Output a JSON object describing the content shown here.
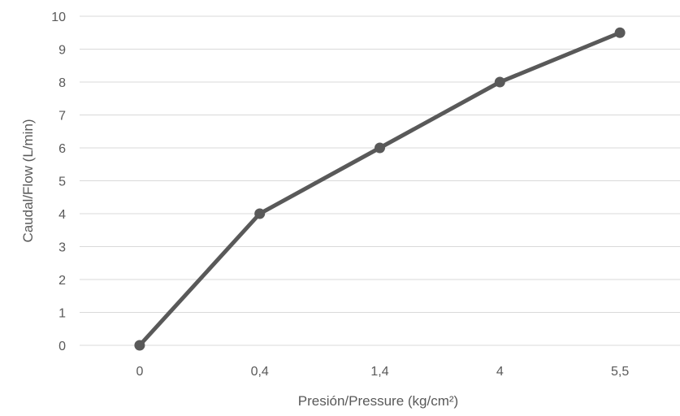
{
  "chart_data": {
    "type": "line",
    "title": "",
    "xlabel": "Presión/Pressure (kg/cm²)",
    "ylabel": "Caudal/Flow (L/min)",
    "categories": [
      "0",
      "0,4",
      "1,4",
      "4",
      "5,5"
    ],
    "series": [
      {
        "values": [
          0,
          4,
          6,
          8,
          9.5
        ]
      }
    ],
    "ylim": [
      0,
      10
    ],
    "yticks": [
      "0",
      "1",
      "2",
      "3",
      "4",
      "5",
      "6",
      "7",
      "8",
      "9",
      "10"
    ],
    "grid": true,
    "legend": "none",
    "line_color": "#595959",
    "marker": "circle"
  }
}
